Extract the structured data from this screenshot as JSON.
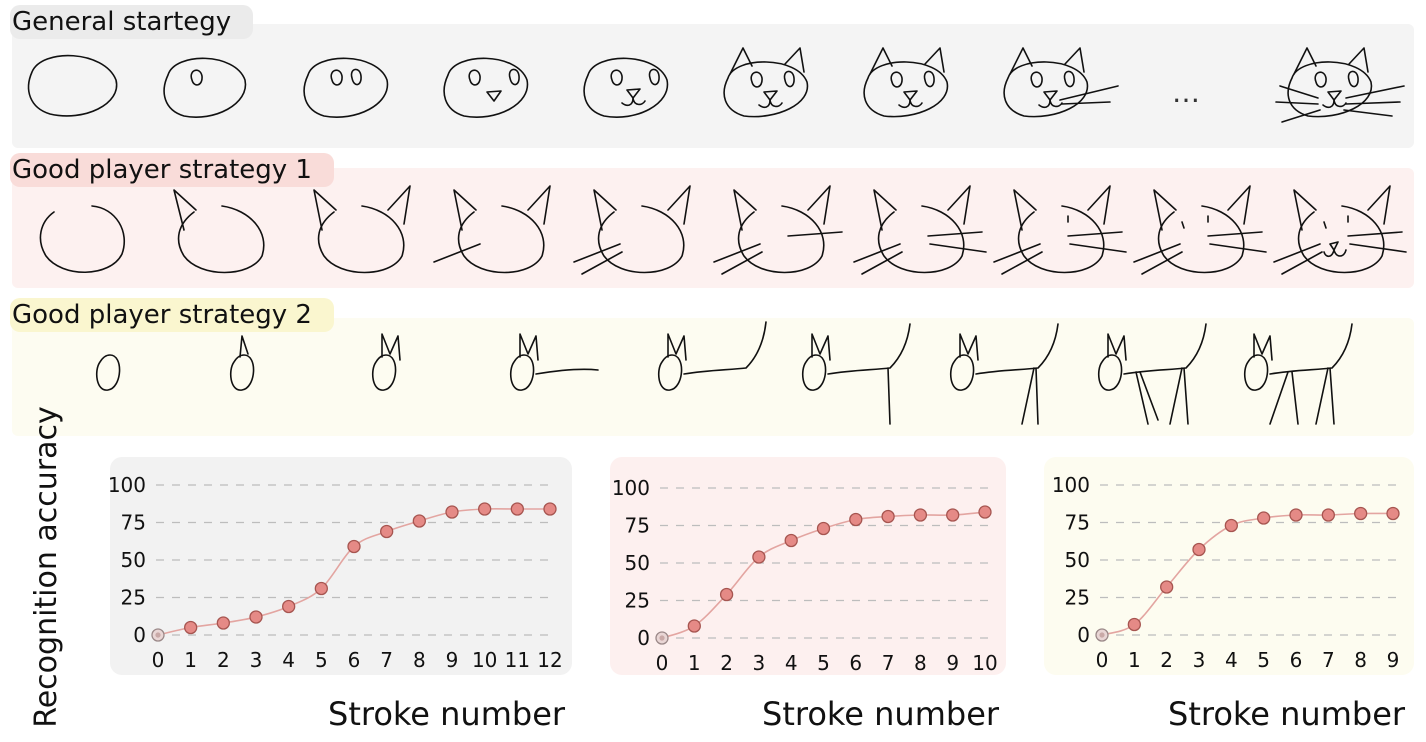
{
  "strategies": [
    {
      "title": "General startegy",
      "color": "#f4f4f4",
      "title_bg": "#ebebeb",
      "ellipsis": "…"
    },
    {
      "title": "Good player strategy 1",
      "color": "#fdf1f0",
      "title_bg": "#f9dcd9"
    },
    {
      "title": "Good player strategy 2",
      "color": "#fdfcf1",
      "title_bg": "#faf6cf"
    }
  ],
  "y_axis_title": "Recognition accuracy",
  "colors": {
    "marker": "#e58a86",
    "marker_stroke": "#a65550",
    "line": "#e3a5a1",
    "grid": "#bdbdbd"
  },
  "chart_data": [
    {
      "type": "line",
      "panel_color": "#f2f2f2",
      "xlabel": "Stroke number",
      "ylabel": "Recognition accuracy",
      "x": [
        0,
        1,
        2,
        3,
        4,
        5,
        6,
        7,
        8,
        9,
        10,
        11,
        12
      ],
      "values": [
        0,
        5,
        8,
        12,
        19,
        31,
        59,
        69,
        76,
        82,
        84,
        84,
        84
      ],
      "xlim": [
        0,
        12
      ],
      "ylim": [
        0,
        100
      ],
      "yticks": [
        0,
        25,
        50,
        75,
        100
      ],
      "grid": true
    },
    {
      "type": "line",
      "panel_color": "#fdf0ef",
      "xlabel": "Stroke number",
      "ylabel": "Recognition accuracy",
      "x": [
        0,
        1,
        2,
        3,
        4,
        5,
        6,
        7,
        8,
        9,
        10
      ],
      "values": [
        0,
        8,
        29,
        54,
        65,
        73,
        79,
        81,
        82,
        82,
        84
      ],
      "xlim": [
        0,
        10
      ],
      "ylim": [
        0,
        100
      ],
      "yticks": [
        0,
        25,
        50,
        75,
        100
      ],
      "grid": true
    },
    {
      "type": "line",
      "panel_color": "#fdfcf0",
      "xlabel": "Stroke number",
      "ylabel": "Recognition accuracy",
      "x": [
        0,
        1,
        2,
        3,
        4,
        5,
        6,
        7,
        8,
        9
      ],
      "values": [
        0,
        7,
        32,
        57,
        73,
        78,
        80,
        80,
        81,
        81
      ],
      "xlim": [
        0,
        9
      ],
      "ylim": [
        0,
        100
      ],
      "yticks": [
        0,
        25,
        50,
        75,
        100
      ],
      "grid": true
    }
  ]
}
